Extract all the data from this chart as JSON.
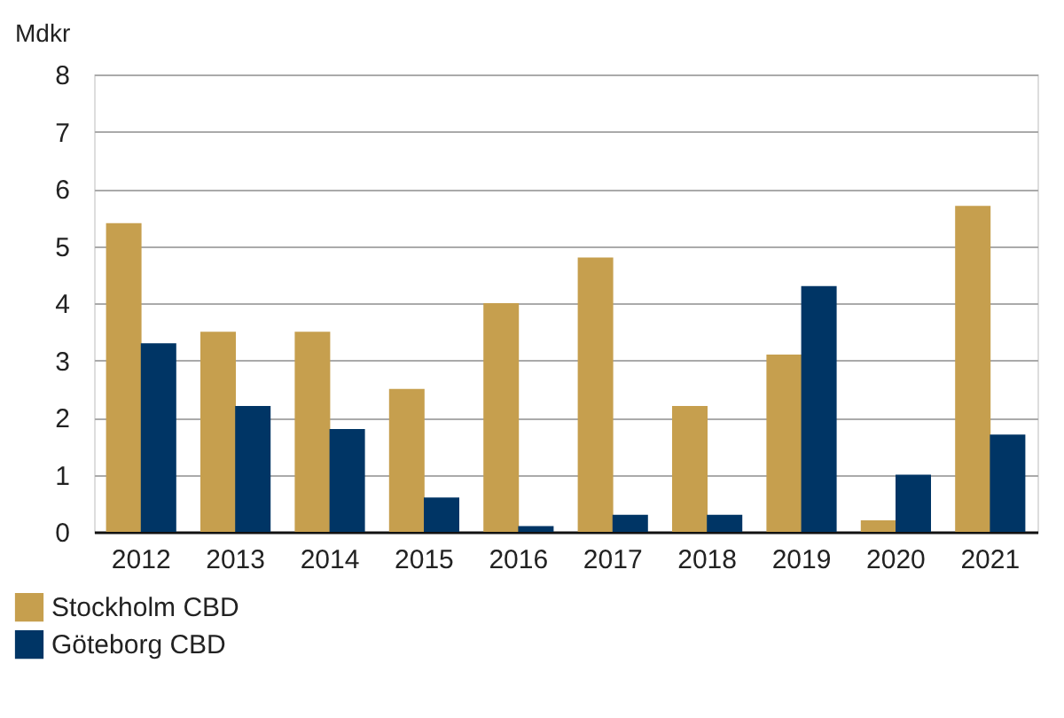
{
  "chart_data": {
    "type": "bar",
    "ylabel": "Mdkr",
    "categories": [
      "2012",
      "2013",
      "2014",
      "2015",
      "2016",
      "2017",
      "2018",
      "2019",
      "2020",
      "2021"
    ],
    "series": [
      {
        "name": "Stockholm CBD",
        "color": "#c69f4e",
        "values": [
          5.4,
          3.5,
          3.5,
          2.5,
          4.0,
          4.8,
          2.2,
          3.1,
          0.2,
          5.7
        ]
      },
      {
        "name": "Göteborg CBD",
        "color": "#003565",
        "values": [
          3.3,
          2.2,
          1.8,
          0.6,
          0.1,
          0.3,
          0.3,
          4.3,
          1.0,
          1.7
        ]
      }
    ],
    "ylim": [
      0,
      8
    ],
    "yticks": [
      0,
      1,
      2,
      3,
      4,
      5,
      6,
      7,
      8
    ],
    "grid": "y",
    "legend": "bottom left"
  }
}
